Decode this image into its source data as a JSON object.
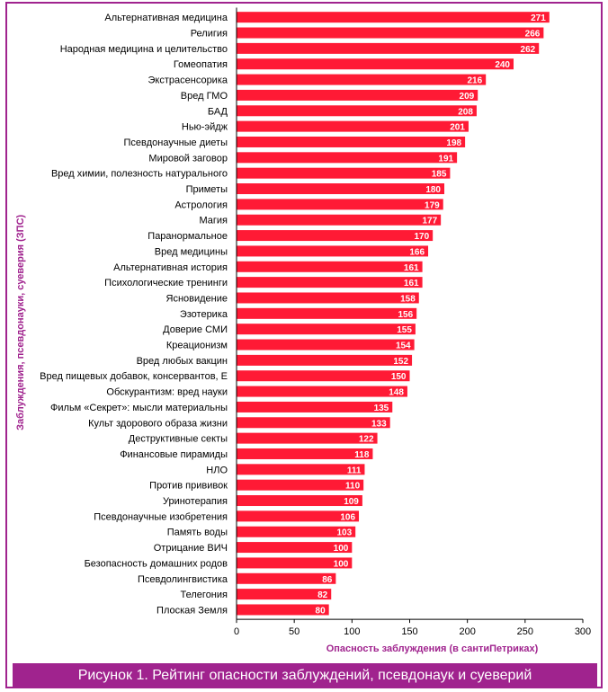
{
  "chart_data": {
    "type": "bar",
    "orientation": "horizontal",
    "categories": [
      "Альтернативная медицина",
      "Религия",
      "Народная медицина и целительство",
      "Гомеопатия",
      "Экстрасенсорика",
      "Вред ГМО",
      "БАД",
      "Нью-эйдж",
      "Псевдонаучные диеты",
      "Мировой заговор",
      "Вред химии, полезность натурального",
      "Приметы",
      "Астрология",
      "Магия",
      "Паранормальное",
      "Вред медицины",
      "Альтернативная история",
      "Психологические тренинги",
      "Ясновидение",
      "Эзотерика",
      "Доверие СМИ",
      "Креационизм",
      "Вред любых вакцин",
      "Вред пищевых добавок, консервантов, Е",
      "Обскурантизм: вред науки",
      "Фильм «Секрет»: мысли материальны",
      "Культ здорового образа жизни",
      "Деструктивные секты",
      "Финансовые пирамиды",
      "НЛО",
      "Против прививок",
      "Уринотерапия",
      "Псевдонаучные изобретения",
      "Память воды",
      "Отрицание ВИЧ",
      "Безопасность домашних родов",
      "Псевдолингвистика",
      "Телегония",
      "Плоская Земля"
    ],
    "values": [
      271,
      266,
      262,
      240,
      216,
      209,
      208,
      201,
      198,
      191,
      185,
      180,
      179,
      177,
      170,
      166,
      161,
      161,
      158,
      156,
      155,
      154,
      152,
      150,
      148,
      135,
      133,
      122,
      118,
      111,
      110,
      109,
      106,
      103,
      100,
      100,
      86,
      82,
      80
    ],
    "xlabel": "Опасность заблуждения (в сантиПетриках)",
    "ylabel": "Заблуждения, псевдонауки, суеверия (ЗПС)",
    "xlim": [
      0,
      300
    ],
    "xticks": [
      0,
      50,
      100,
      150,
      200,
      250,
      300
    ],
    "data_labels": true,
    "grid": false,
    "bar_color": "#ff1a35",
    "label_color": "#ffffff"
  },
  "caption": "Рисунок 1.  Рейтинг опасности заблуждений, псевдонаук и суеверий",
  "colors": {
    "accent": "#a0238e",
    "axis_title": "#a0238e",
    "text": "#000000"
  }
}
